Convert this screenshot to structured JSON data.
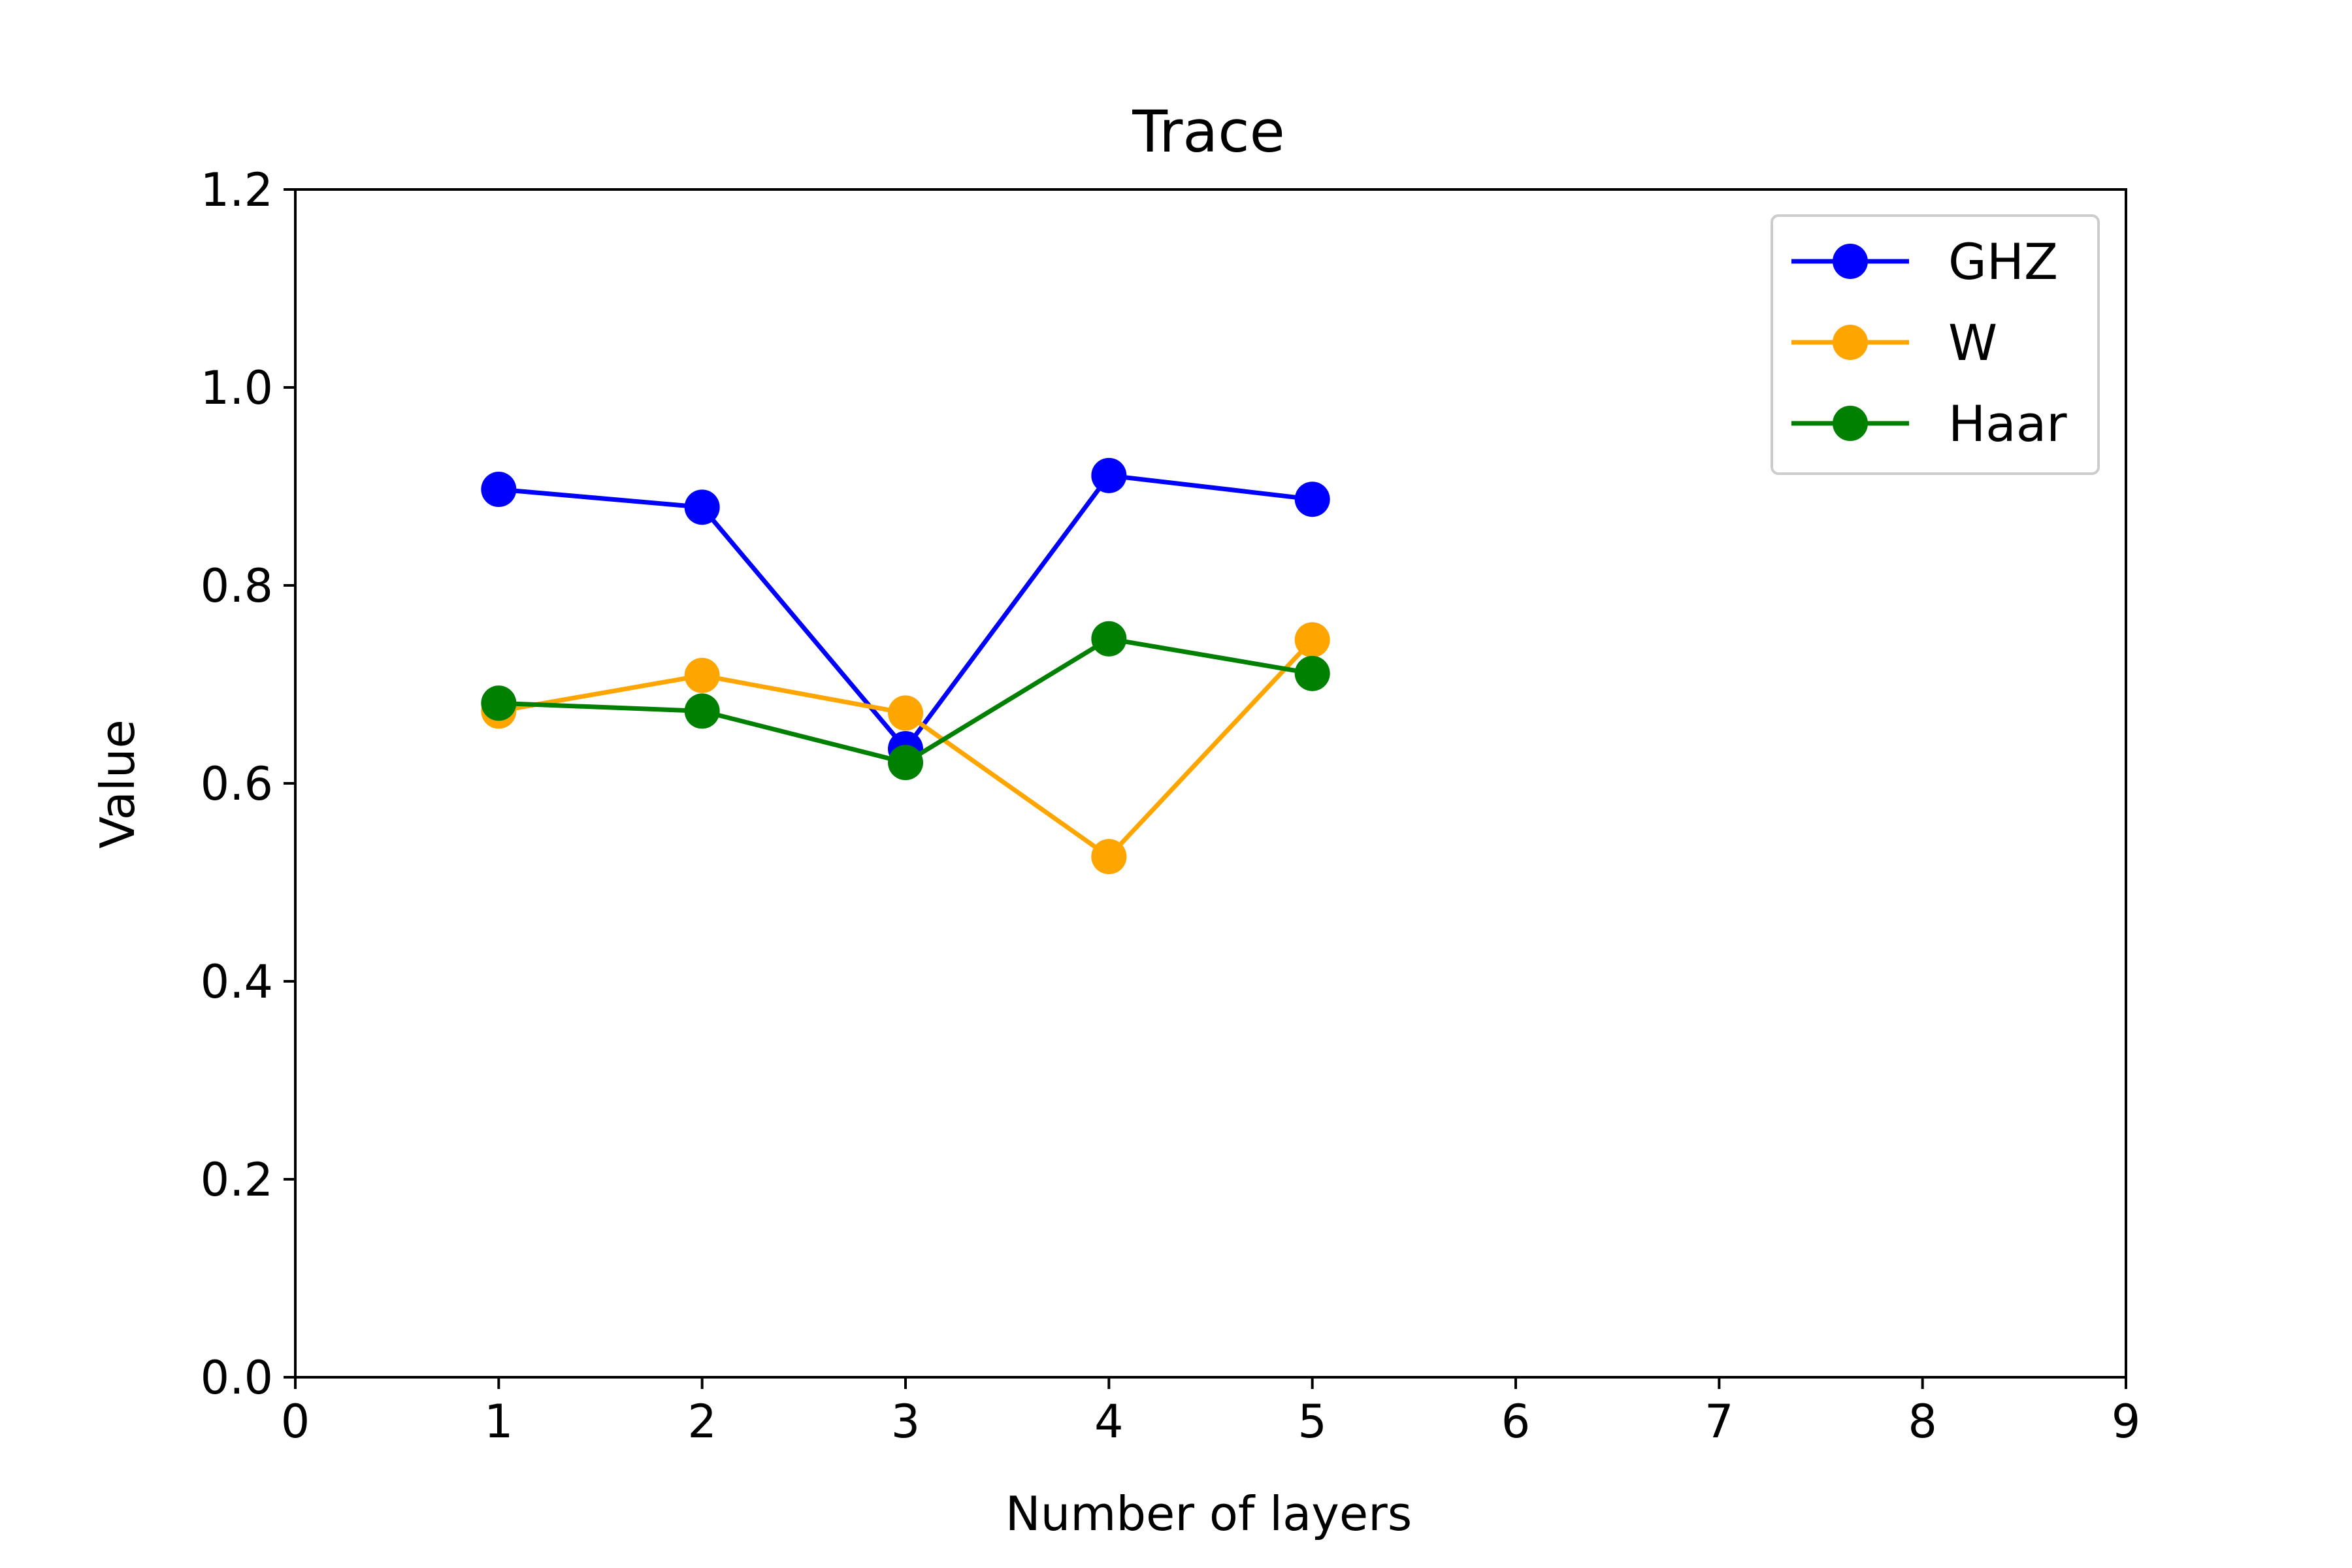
{
  "chart_data": {
    "type": "line",
    "title": "Trace",
    "xlabel": "Number of layers",
    "ylabel": "Value",
    "xlim": [
      0,
      9
    ],
    "ylim": [
      0,
      1.2
    ],
    "xticks": [
      0,
      1,
      2,
      3,
      4,
      5,
      6,
      7,
      8,
      9
    ],
    "yticks": [
      0.0,
      0.2,
      0.4,
      0.6,
      0.8,
      1.0,
      1.2
    ],
    "ytick_labels": [
      "0.0",
      "0.2",
      "0.4",
      "0.6",
      "0.8",
      "1.0",
      "1.2"
    ],
    "grid": false,
    "legend_position": "top-right",
    "x": [
      1,
      2,
      3,
      4,
      5
    ],
    "series": [
      {
        "name": "GHZ",
        "color": "#0000ff",
        "values": [
          0.897,
          0.879,
          0.635,
          0.911,
          0.887
        ]
      },
      {
        "name": "W",
        "color": "#ffa500",
        "values": [
          0.673,
          0.709,
          0.671,
          0.526,
          0.745
        ]
      },
      {
        "name": "Haar",
        "color": "#008000",
        "values": [
          0.681,
          0.673,
          0.621,
          0.746,
          0.711
        ]
      }
    ]
  }
}
